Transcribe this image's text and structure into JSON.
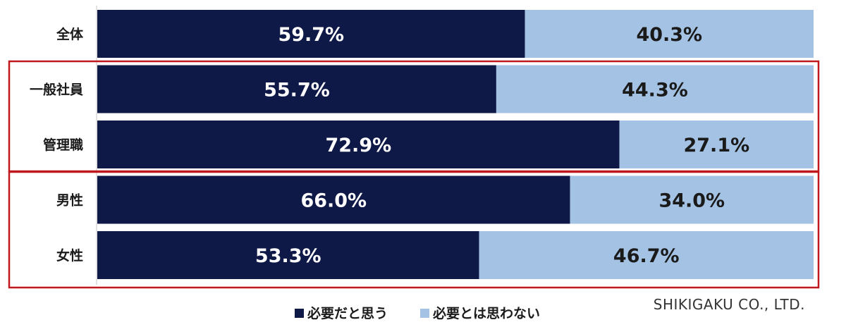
{
  "chart_data": {
    "type": "bar",
    "orientation": "horizontal",
    "stacked": true,
    "categories": [
      "全体",
      "一般社員",
      "管理職",
      "男性",
      "女性"
    ],
    "series": [
      {
        "name": "必要だと思う",
        "values": [
          59.7,
          55.7,
          72.9,
          66.0,
          53.3
        ],
        "labels": [
          "59.7%",
          "55.7%",
          "72.9%",
          "66.0%",
          "53.3%"
        ]
      },
      {
        "name": "必要とは思わない",
        "values": [
          40.3,
          44.3,
          27.1,
          34.0,
          46.7
        ],
        "labels": [
          "40.3%",
          "44.3%",
          "27.1%",
          "34.0%",
          "46.7%"
        ]
      }
    ],
    "xlim": [
      0,
      100
    ],
    "grid": false,
    "legend": "bottom"
  },
  "colors": {
    "series_1": "#0f1947",
    "series_2": "#a4c2e3",
    "series_1_label": "#ffffff",
    "series_2_label": "#1a1a1a",
    "highlight_box": "#c0181c",
    "axis": "#d9d9d9"
  },
  "credit": "SHIKIGAKU CO., LTD."
}
